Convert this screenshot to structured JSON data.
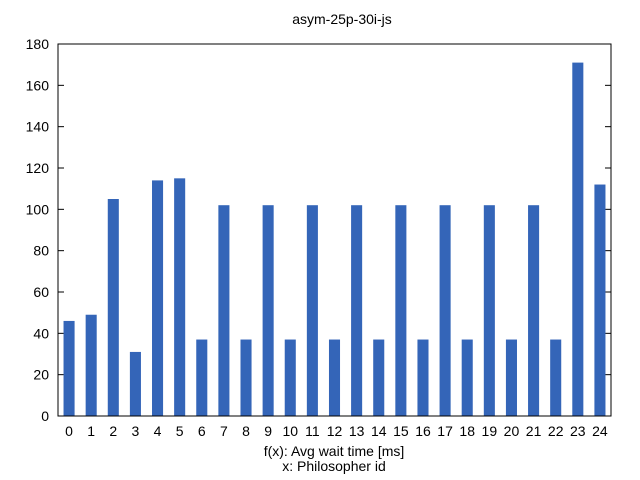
{
  "chart_data": {
    "type": "bar",
    "title": "asym-25p-30i-js",
    "xlabel": "f(x): Avg wait time [ms]",
    "xlabel2": "x: Philosopher id",
    "ylabel": "",
    "categories": [
      "0",
      "1",
      "2",
      "3",
      "4",
      "5",
      "6",
      "7",
      "8",
      "9",
      "10",
      "11",
      "12",
      "13",
      "14",
      "15",
      "16",
      "17",
      "18",
      "19",
      "20",
      "21",
      "22",
      "23",
      "24"
    ],
    "values": [
      46,
      49,
      105,
      31,
      114,
      115,
      37,
      102,
      37,
      102,
      37,
      102,
      37,
      102,
      37,
      102,
      37,
      102,
      37,
      102,
      37,
      102,
      37,
      171,
      112
    ],
    "ylim": [
      0,
      180
    ],
    "yticks": [
      "0",
      "20",
      "40",
      "60",
      "80",
      "100",
      "120",
      "140",
      "160",
      "180"
    ],
    "bar_color": "#3465b8",
    "grid": false,
    "legend": "none"
  }
}
